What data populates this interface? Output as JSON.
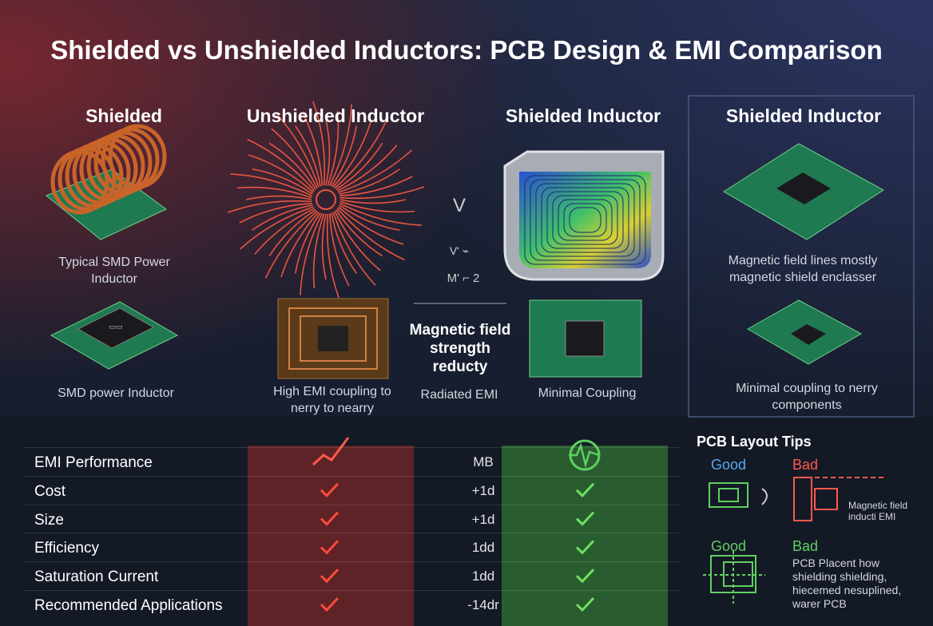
{
  "title": "Shielded vs Unshielded Inductors: PCB Design & EMI Comparison",
  "panels": [
    {
      "heading": "Shielded",
      "captions": [
        "Typical SMD Power Inductor",
        "SMD power Inductor"
      ]
    },
    {
      "heading": "Unshielded Inductor",
      "captions": [
        "High EMI coupling to nerry to nearry"
      ]
    },
    {
      "heading": "Shielded Inductor",
      "captions": [
        "Minimal Coupling"
      ]
    },
    {
      "heading": "Shielded Inductor",
      "captions": [
        "Magnetic field lines mostly magnetic shield enclasser",
        "Minimal coupling to nerry components"
      ]
    }
  ],
  "center": {
    "symbols": [
      "V",
      "V' ⌁",
      "M' ⌐ 2"
    ],
    "label": "Magnetic field strength reducty",
    "caption": "Radiated EMI"
  },
  "table": {
    "rows": [
      [
        "EMI Performance",
        "MB"
      ],
      [
        "Cost",
        "+1d"
      ],
      [
        "Size",
        "+1d"
      ],
      [
        "Efficiency",
        "1dd"
      ],
      [
        "Saturation Current",
        "1dd"
      ],
      [
        "Recommended Applications",
        "-14dr"
      ]
    ]
  },
  "tips": {
    "title": "PCB Layout Tips",
    "items": [
      {
        "good": "Good",
        "bad": "Bad",
        "note": "Magnetic field inducti EMI"
      },
      {
        "good": "Good",
        "bad": "Bad",
        "note": "PCB Placent how shielding shielding, hiecemed nesuplined, warer PCB"
      }
    ]
  }
}
